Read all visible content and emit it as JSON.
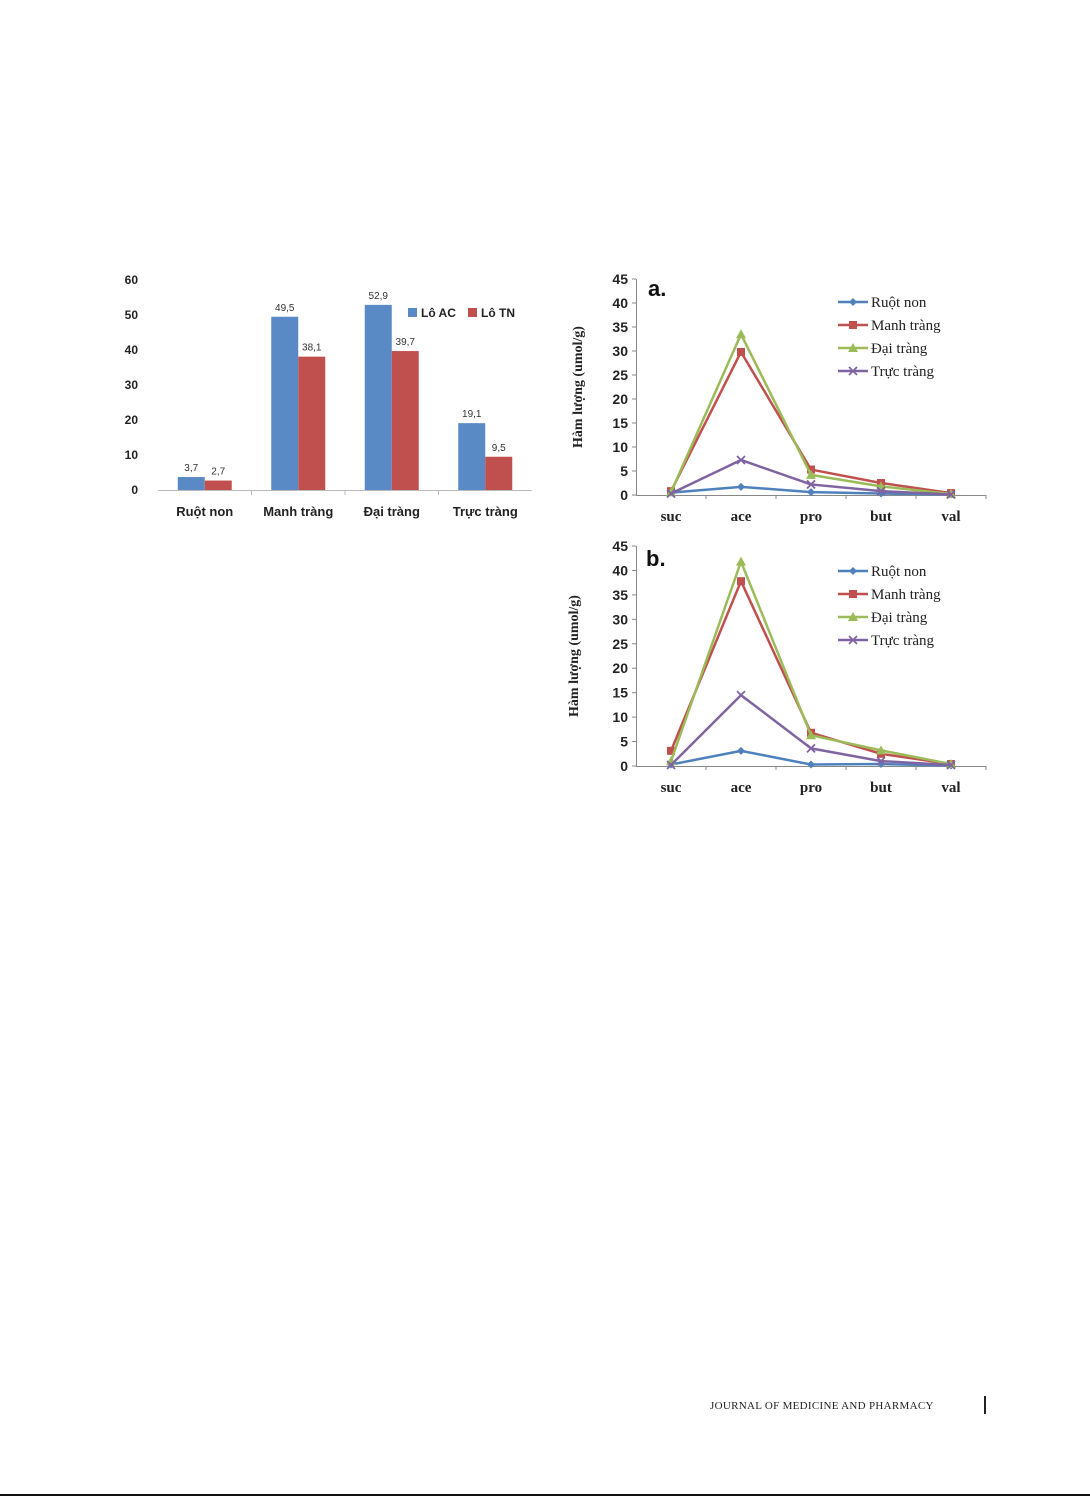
{
  "chart_data": [
    {
      "type": "bar",
      "categories": [
        "Ruột non",
        "Manh tràng",
        "Đại tràng",
        "Trực tràng"
      ],
      "series": [
        {
          "name": "Lô AC",
          "values": [
            3.7,
            49.5,
            52.9,
            19.1
          ],
          "labels": [
            "3,7",
            "49,5",
            "52,9",
            "19,1"
          ],
          "color": "#5A8AC6"
        },
        {
          "name": "Lô TN",
          "values": [
            2.7,
            38.1,
            39.7,
            9.5
          ],
          "labels": [
            "2,7",
            "38,1",
            "39,7",
            "9,5"
          ],
          "color": "#C0504D"
        }
      ],
      "yticks": [
        "0",
        "10",
        "20",
        "30",
        "40",
        "50",
        "60"
      ],
      "ylim": [
        0,
        60
      ],
      "grid": false,
      "legend": "top-right"
    },
    {
      "type": "line",
      "panel_label": "a.",
      "categories": [
        "suc",
        "ace",
        "pro",
        "but",
        "val"
      ],
      "ylabel": "Hàm lượng (umol/g)",
      "ylim": [
        0,
        45
      ],
      "yticks": [
        "0",
        "5",
        "10",
        "15",
        "20",
        "25",
        "30",
        "35",
        "40",
        "45"
      ],
      "series": [
        {
          "name": "Ruột non",
          "values": [
            0.5,
            1.7,
            0.6,
            0.3,
            0.1
          ],
          "color": "#4F81BD",
          "marker": "diamond"
        },
        {
          "name": "Manh tràng",
          "values": [
            0.8,
            29.8,
            5.3,
            2.5,
            0.4
          ],
          "color": "#C0504D",
          "marker": "square"
        },
        {
          "name": "Đại tràng",
          "values": [
            0.6,
            33.5,
            4.2,
            1.8,
            0.2
          ],
          "color": "#9BBB59",
          "marker": "triangle"
        },
        {
          "name": "Trực tràng",
          "values": [
            0.3,
            7.3,
            2.2,
            0.8,
            0.1
          ],
          "color": "#8064A2",
          "marker": "x"
        }
      ],
      "grid": false,
      "legend": "top-right"
    },
    {
      "type": "line",
      "panel_label": "b.",
      "categories": [
        "suc",
        "ace",
        "pro",
        "but",
        "val"
      ],
      "ylabel": "Hàm lượng (umol/g)",
      "ylim": [
        0,
        45
      ],
      "yticks": [
        "0",
        "5",
        "10",
        "15",
        "20",
        "25",
        "30",
        "35",
        "40",
        "45"
      ],
      "series": [
        {
          "name": "Ruột non",
          "values": [
            0.3,
            3.1,
            0.3,
            0.4,
            0.1
          ],
          "color": "#4F81BD",
          "marker": "diamond"
        },
        {
          "name": "Manh tràng",
          "values": [
            3.1,
            37.8,
            6.8,
            2.5,
            0.4
          ],
          "color": "#C0504D",
          "marker": "square"
        },
        {
          "name": "Đại tràng",
          "values": [
            1.0,
            41.8,
            6.3,
            3.2,
            0.4
          ],
          "color": "#9BBB59",
          "marker": "triangle"
        },
        {
          "name": "Trực tràng",
          "values": [
            0.2,
            14.5,
            3.6,
            1.0,
            0.2
          ],
          "color": "#8064A2",
          "marker": "x"
        }
      ],
      "grid": false,
      "legend": "top-right"
    }
  ],
  "footer": {
    "journal": "JOURNAL OF MEDICINE AND PHARMACY"
  }
}
